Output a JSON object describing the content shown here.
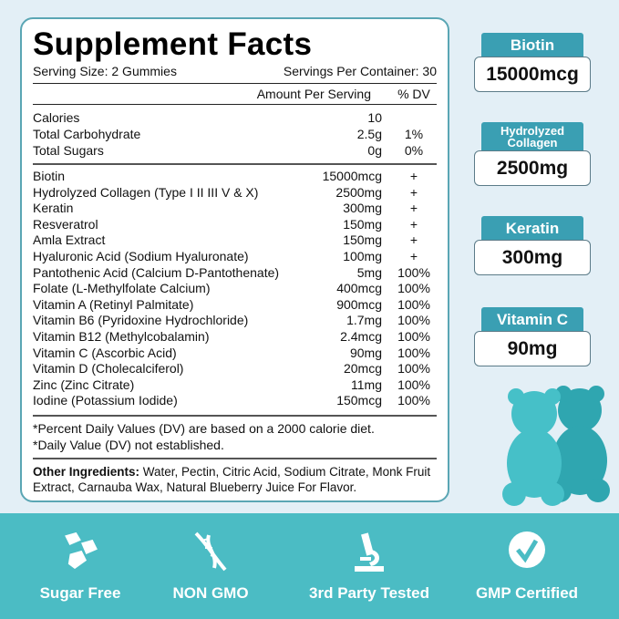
{
  "facts": {
    "title": "Supplement Facts",
    "serving_size": "Serving Size: 2 Gummies",
    "servings_per_container": "Servings Per Container: 30",
    "col_amount": "Amount Per Serving",
    "col_dv": "% DV",
    "basics": [
      {
        "name": "Calories",
        "amount": "10",
        "dv": ""
      },
      {
        "name": "Total Carbohydrate",
        "amount": "2.5g",
        "dv": "1%"
      },
      {
        "name": "Total Sugars",
        "amount": "0g",
        "dv": "0%"
      }
    ],
    "ingredients": [
      {
        "name": "Biotin",
        "amount": "15000mcg",
        "dv": "+"
      },
      {
        "name": "Hydrolyzed Collagen (Type I II III V & X)",
        "amount": "2500mg",
        "dv": "+"
      },
      {
        "name": "Keratin",
        "amount": "300mg",
        "dv": "+"
      },
      {
        "name": "Resveratrol",
        "amount": "150mg",
        "dv": "+"
      },
      {
        "name": "Amla Extract",
        "amount": "150mg",
        "dv": "+"
      },
      {
        "name": "Hyaluronic Acid (Sodium Hyaluronate)",
        "amount": "100mg",
        "dv": "+"
      },
      {
        "name": "Pantothenic Acid (Calcium D-Pantothenate)",
        "amount": "5mg",
        "dv": "100%"
      },
      {
        "name": "Folate (L-Methylfolate Calcium)",
        "amount": "400mcg",
        "dv": "100%"
      },
      {
        "name": "Vitamin A (Retinyl Palmitate)",
        "amount": "900mcg",
        "dv": "100%"
      },
      {
        "name": "Vitamin B6 (Pyridoxine Hydrochloride)",
        "amount": "1.7mg",
        "dv": "100%"
      },
      {
        "name": "Vitamin B12 (Methylcobalamin)",
        "amount": "2.4mcg",
        "dv": "100%"
      },
      {
        "name": "Vitamin C (Ascorbic Acid)",
        "amount": "90mg",
        "dv": "100%"
      },
      {
        "name": "Vitamin D (Cholecalciferol)",
        "amount": "20mcg",
        "dv": "100%"
      },
      {
        "name": "Zinc (Zinc Citrate)",
        "amount": "11mg",
        "dv": "100%"
      },
      {
        "name": "Iodine (Potassium Iodide)",
        "amount": "150mcg",
        "dv": "100%"
      }
    ],
    "footnote1": "*Percent Daily Values (DV) are based on a 2000 calorie diet.",
    "footnote2": "*Daily Value (DV) not established.",
    "other_label": "Other Ingredients:",
    "other_text": " Water, Pectin, Citric Acid, Sodium Citrate, Monk Fruit Extract, Carnauba Wax, Natural Blueberry Juice For Flavor."
  },
  "badges": [
    {
      "label": "Biotin",
      "value": "15000mcg"
    },
    {
      "label": "Hydrolyzed Collagen",
      "value": "2500mg"
    },
    {
      "label": "Keratin",
      "value": "300mg"
    },
    {
      "label": "Vitamin C",
      "value": "90mg"
    }
  ],
  "features": [
    {
      "label": "Sugar Free",
      "icon": "sugar-cubes-icon"
    },
    {
      "label": "NON GMO",
      "icon": "dna-icon"
    },
    {
      "label": "3rd Party Tested",
      "icon": "microscope-icon"
    },
    {
      "label": "GMP Certified",
      "icon": "check-circle-icon"
    }
  ],
  "colors": {
    "teal": "#4bbcc4",
    "badge": "#3a9fb3",
    "background": "#e3eff6"
  }
}
